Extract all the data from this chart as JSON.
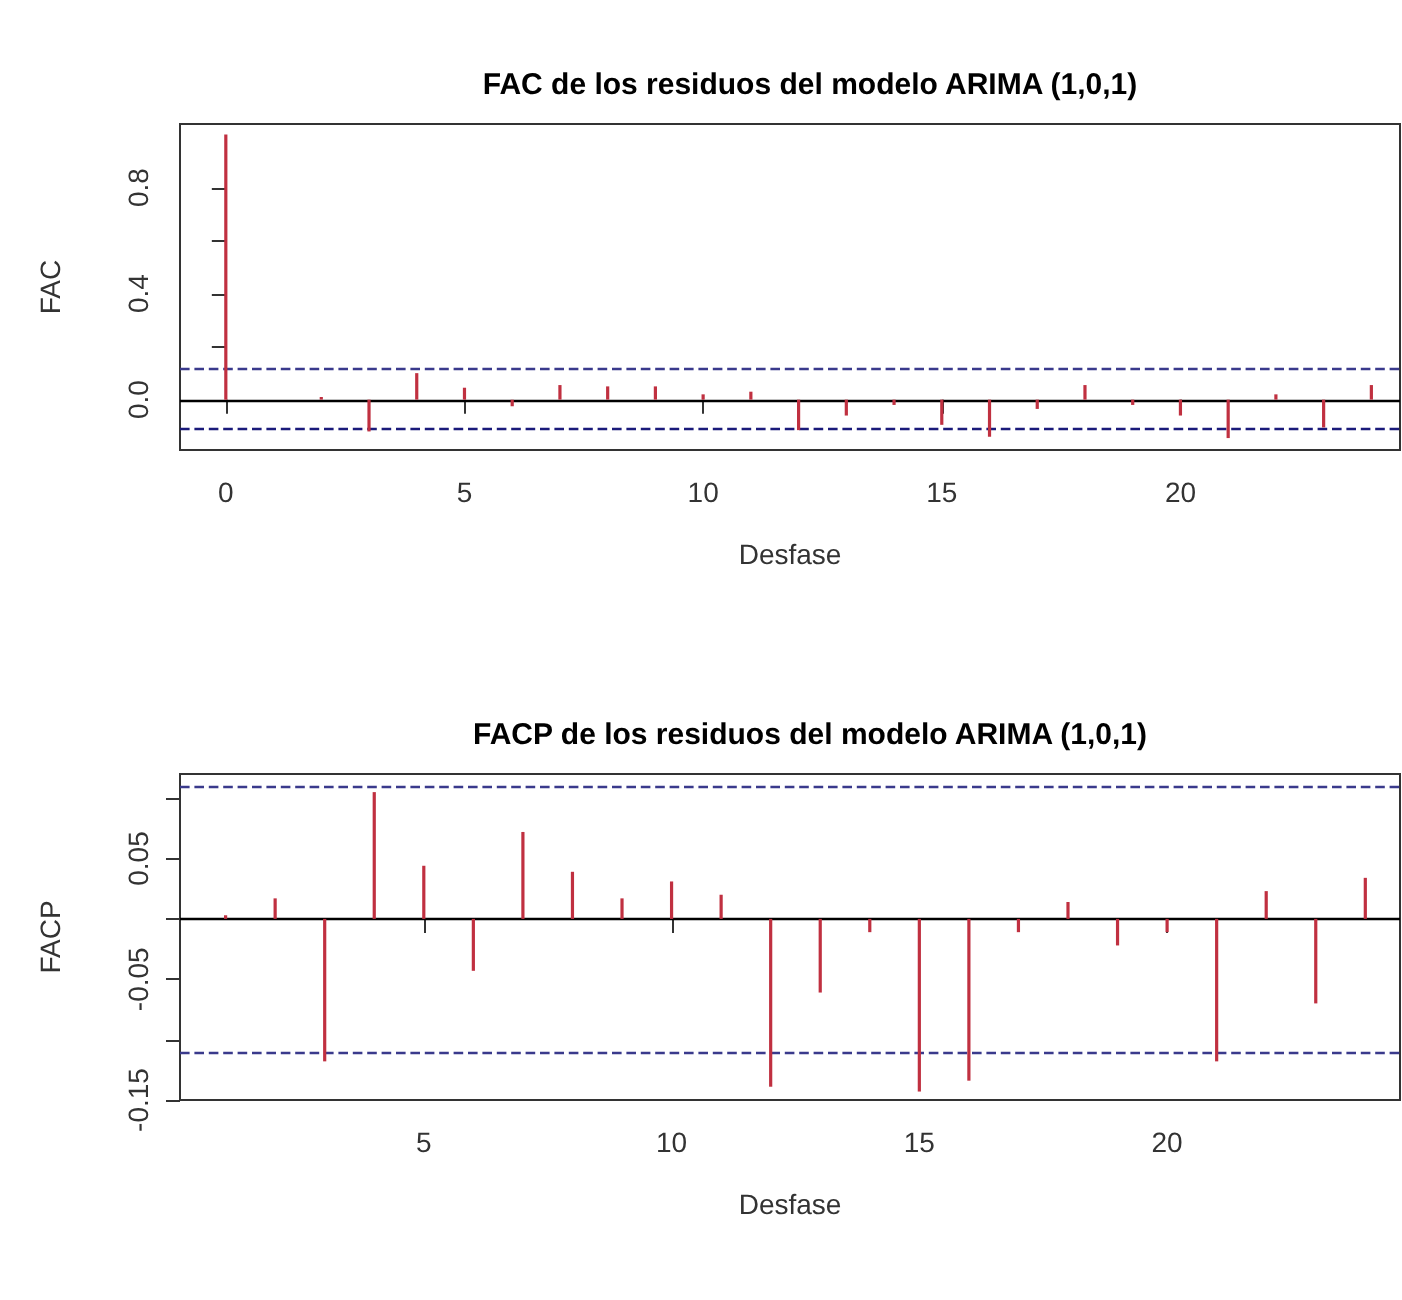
{
  "chart_data": [
    {
      "type": "bar",
      "title": "FAC de los residuos del modelo ARIMA (1,0,1)",
      "xlabel": "Desfase",
      "ylabel": "FAC",
      "x": [
        0,
        1,
        2,
        3,
        4,
        5,
        6,
        7,
        8,
        9,
        10,
        11,
        12,
        13,
        14,
        15,
        16,
        17,
        18,
        19,
        20,
        21,
        22,
        23,
        24
      ],
      "series": [
        {
          "color": "#c03040",
          "values": [
            1.0,
            0.0,
            0.01,
            -0.12,
            0.1,
            0.045,
            -0.025,
            0.055,
            0.05,
            0.05,
            0.02,
            0.03,
            -0.115,
            -0.06,
            -0.02,
            -0.095,
            -0.14,
            -0.035,
            0.055,
            -0.02,
            -0.06,
            -0.145,
            0.02,
            -0.105,
            0.055
          ]
        }
      ],
      "xlim": [
        -0.96,
        24.6
      ],
      "xticks": [
        0,
        5,
        10,
        15,
        20
      ],
      "ylim": [
        -0.19,
        1.04
      ],
      "yticks": [
        {
          "value": 0,
          "label": "0.0"
        },
        {
          "value": 0.2,
          "label": null
        },
        {
          "value": 0.4,
          "label": "0.4"
        },
        {
          "value": 0.6,
          "label": null
        },
        {
          "value": 0.8,
          "label": "0.8"
        }
      ],
      "ref_lines": [
        {
          "axis": "y",
          "value": 0,
          "color": "#000000",
          "line_style": "solid"
        },
        {
          "axis": "y",
          "value": 0.12,
          "color": "#3a3a8c",
          "line_style": "dashed"
        },
        {
          "axis": "y",
          "value": -0.11,
          "color": "#1a1a7a",
          "line_style": "dashed"
        }
      ]
    },
    {
      "type": "bar",
      "title": "FACP de los residuos del modelo ARIMA (1,0,1)",
      "xlabel": "Desfase",
      "ylabel": "FACP",
      "x": [
        1,
        2,
        3,
        4,
        5,
        6,
        7,
        8,
        9,
        10,
        11,
        12,
        13,
        14,
        15,
        16,
        17,
        18,
        19,
        20,
        21,
        22,
        23,
        24
      ],
      "series": [
        {
          "color": "#c03040",
          "values": [
            0.003,
            0.017,
            -0.118,
            0.105,
            0.044,
            -0.043,
            0.072,
            0.039,
            0.017,
            0.031,
            0.02,
            -0.139,
            -0.061,
            -0.011,
            -0.143,
            -0.134,
            -0.011,
            0.014,
            -0.022,
            -0.011,
            -0.118,
            0.023,
            -0.07,
            0.034
          ]
        }
      ],
      "xlim": [
        0.08,
        24.7
      ],
      "xticks": [
        5,
        10,
        15,
        20
      ],
      "ylim": [
        -0.15,
        0.12
      ],
      "yticks": [
        {
          "value": -0.15,
          "label": "-0.15"
        },
        {
          "value": -0.1,
          "label": null
        },
        {
          "value": -0.05,
          "label": "-0.05"
        },
        {
          "value": 0,
          "label": null
        },
        {
          "value": 0.05,
          "label": "0.05"
        },
        {
          "value": 0.1,
          "label": null
        }
      ],
      "ref_lines": [
        {
          "axis": "y",
          "value": 0,
          "color": "#000000",
          "line_style": "solid"
        },
        {
          "axis": "y",
          "value": 0.11,
          "color": "#3a3a8c",
          "line_style": "dashed"
        },
        {
          "axis": "y",
          "value": -0.11,
          "color": "#3a3a8c",
          "line_style": "dashed"
        }
      ]
    }
  ]
}
